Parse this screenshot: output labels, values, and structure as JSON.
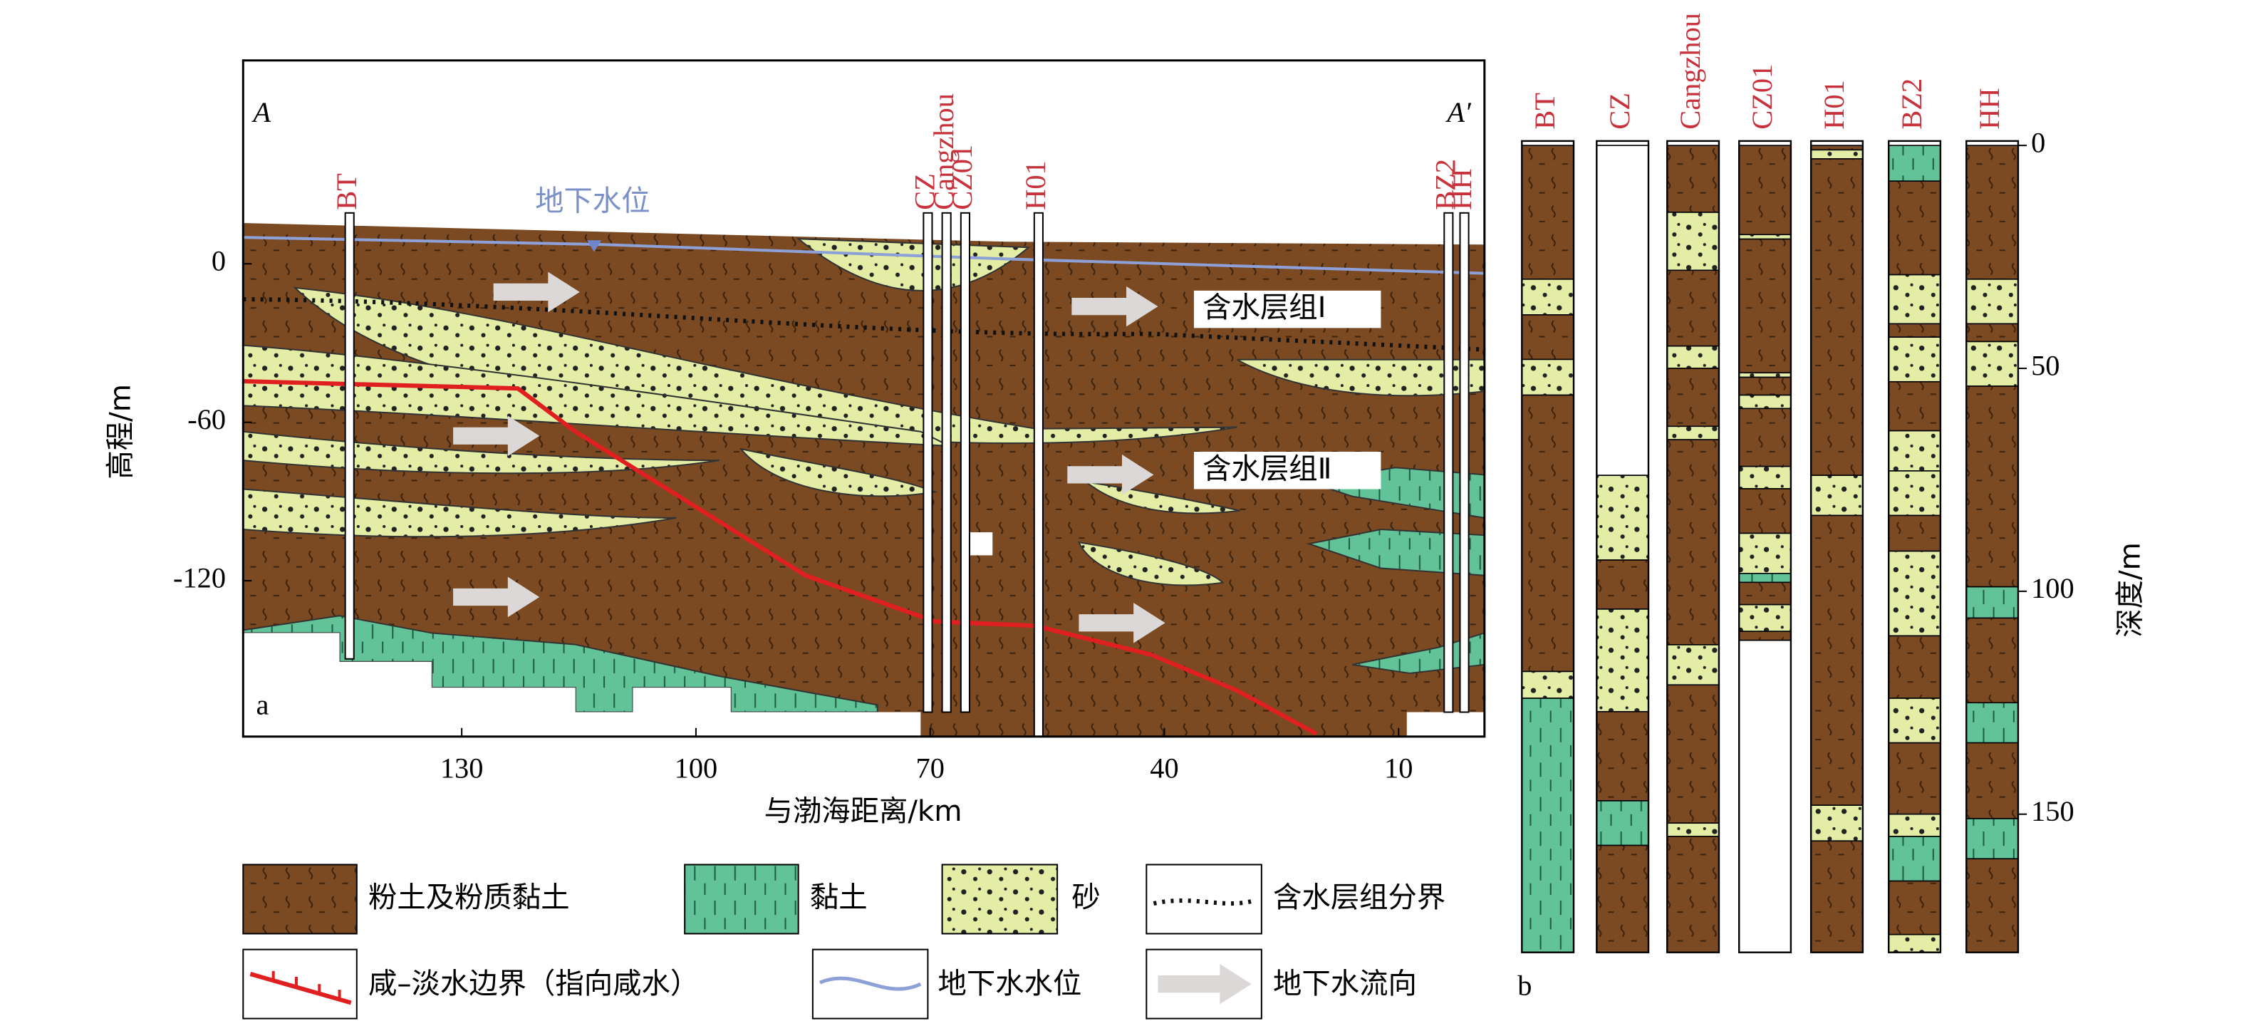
{
  "panel_a": {
    "label": "a",
    "corner_left": "A",
    "corner_right": "A′",
    "y_axis": {
      "title": "高程/m",
      "lim": [
        -179,
        77
      ],
      "ticks": [
        0,
        -60,
        -120
      ]
    },
    "x_axis": {
      "title": "与渤海距离/km",
      "lim": [
        158,
        -1
      ],
      "ticks": [
        130,
        100,
        70,
        40,
        10
      ]
    },
    "water_table_label": "地下水位",
    "aquifer_labels": [
      "含水层组Ⅰ",
      "含水层组Ⅱ"
    ],
    "wells": [
      "BT",
      "CZ",
      "Cangzhou",
      "CZ01",
      "H01",
      "BZ2",
      "HH"
    ]
  },
  "panel_b": {
    "label": "b",
    "columns": [
      "BT",
      "CZ",
      "Cangzhou",
      "CZ01",
      "H01",
      "BZ2",
      "HH"
    ],
    "depth_axis": {
      "title": "深度/m",
      "lim": [
        -1,
        181
      ],
      "ticks": [
        0,
        50,
        100,
        150
      ]
    }
  },
  "legend": [
    "粉土及粉质黏土",
    "黏土",
    "砂",
    "含水层组分界",
    "咸–淡水边界（指向咸水）",
    "地下水水位",
    "地下水流向"
  ]
}
